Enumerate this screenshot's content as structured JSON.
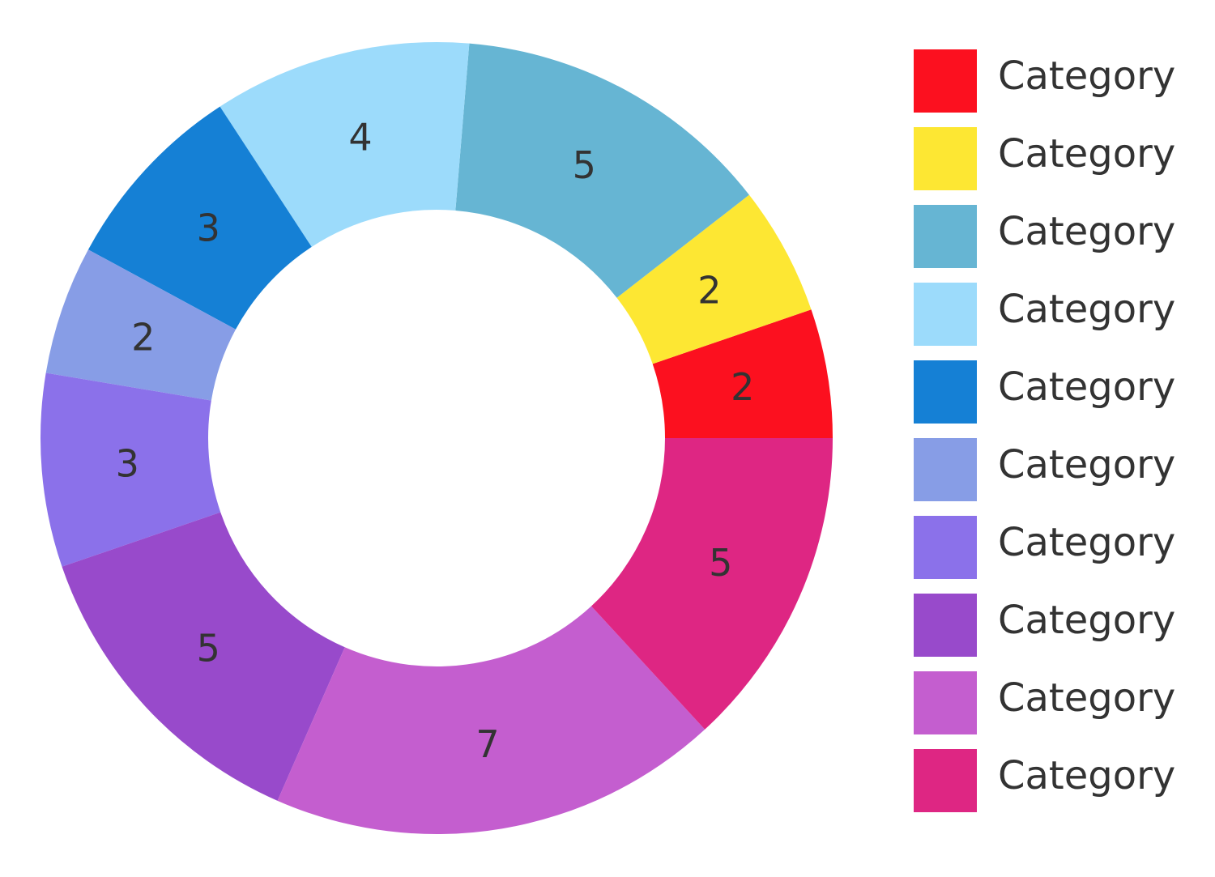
{
  "chart_data": {
    "type": "pie",
    "donut": true,
    "start": "3 o'clock, counter-clockwise",
    "legend_position": "right",
    "slices": [
      {
        "label": "Category",
        "value": 2,
        "color": "#FC101F"
      },
      {
        "label": "Category",
        "value": 2,
        "color": "#FDE733"
      },
      {
        "label": "Category",
        "value": 5,
        "color": "#66B5D3"
      },
      {
        "label": "Category",
        "value": 4,
        "color": "#9CDBFB"
      },
      {
        "label": "Category",
        "value": 3,
        "color": "#1580D5"
      },
      {
        "label": "Category",
        "value": 2,
        "color": "#879DE6"
      },
      {
        "label": "Category",
        "value": 3,
        "color": "#8B71EA"
      },
      {
        "label": "Category",
        "value": 5,
        "color": "#984ACB"
      },
      {
        "label": "Category",
        "value": 7,
        "color": "#C45ECF"
      },
      {
        "label": "Category",
        "value": 5,
        "color": "#DE2683"
      }
    ]
  }
}
